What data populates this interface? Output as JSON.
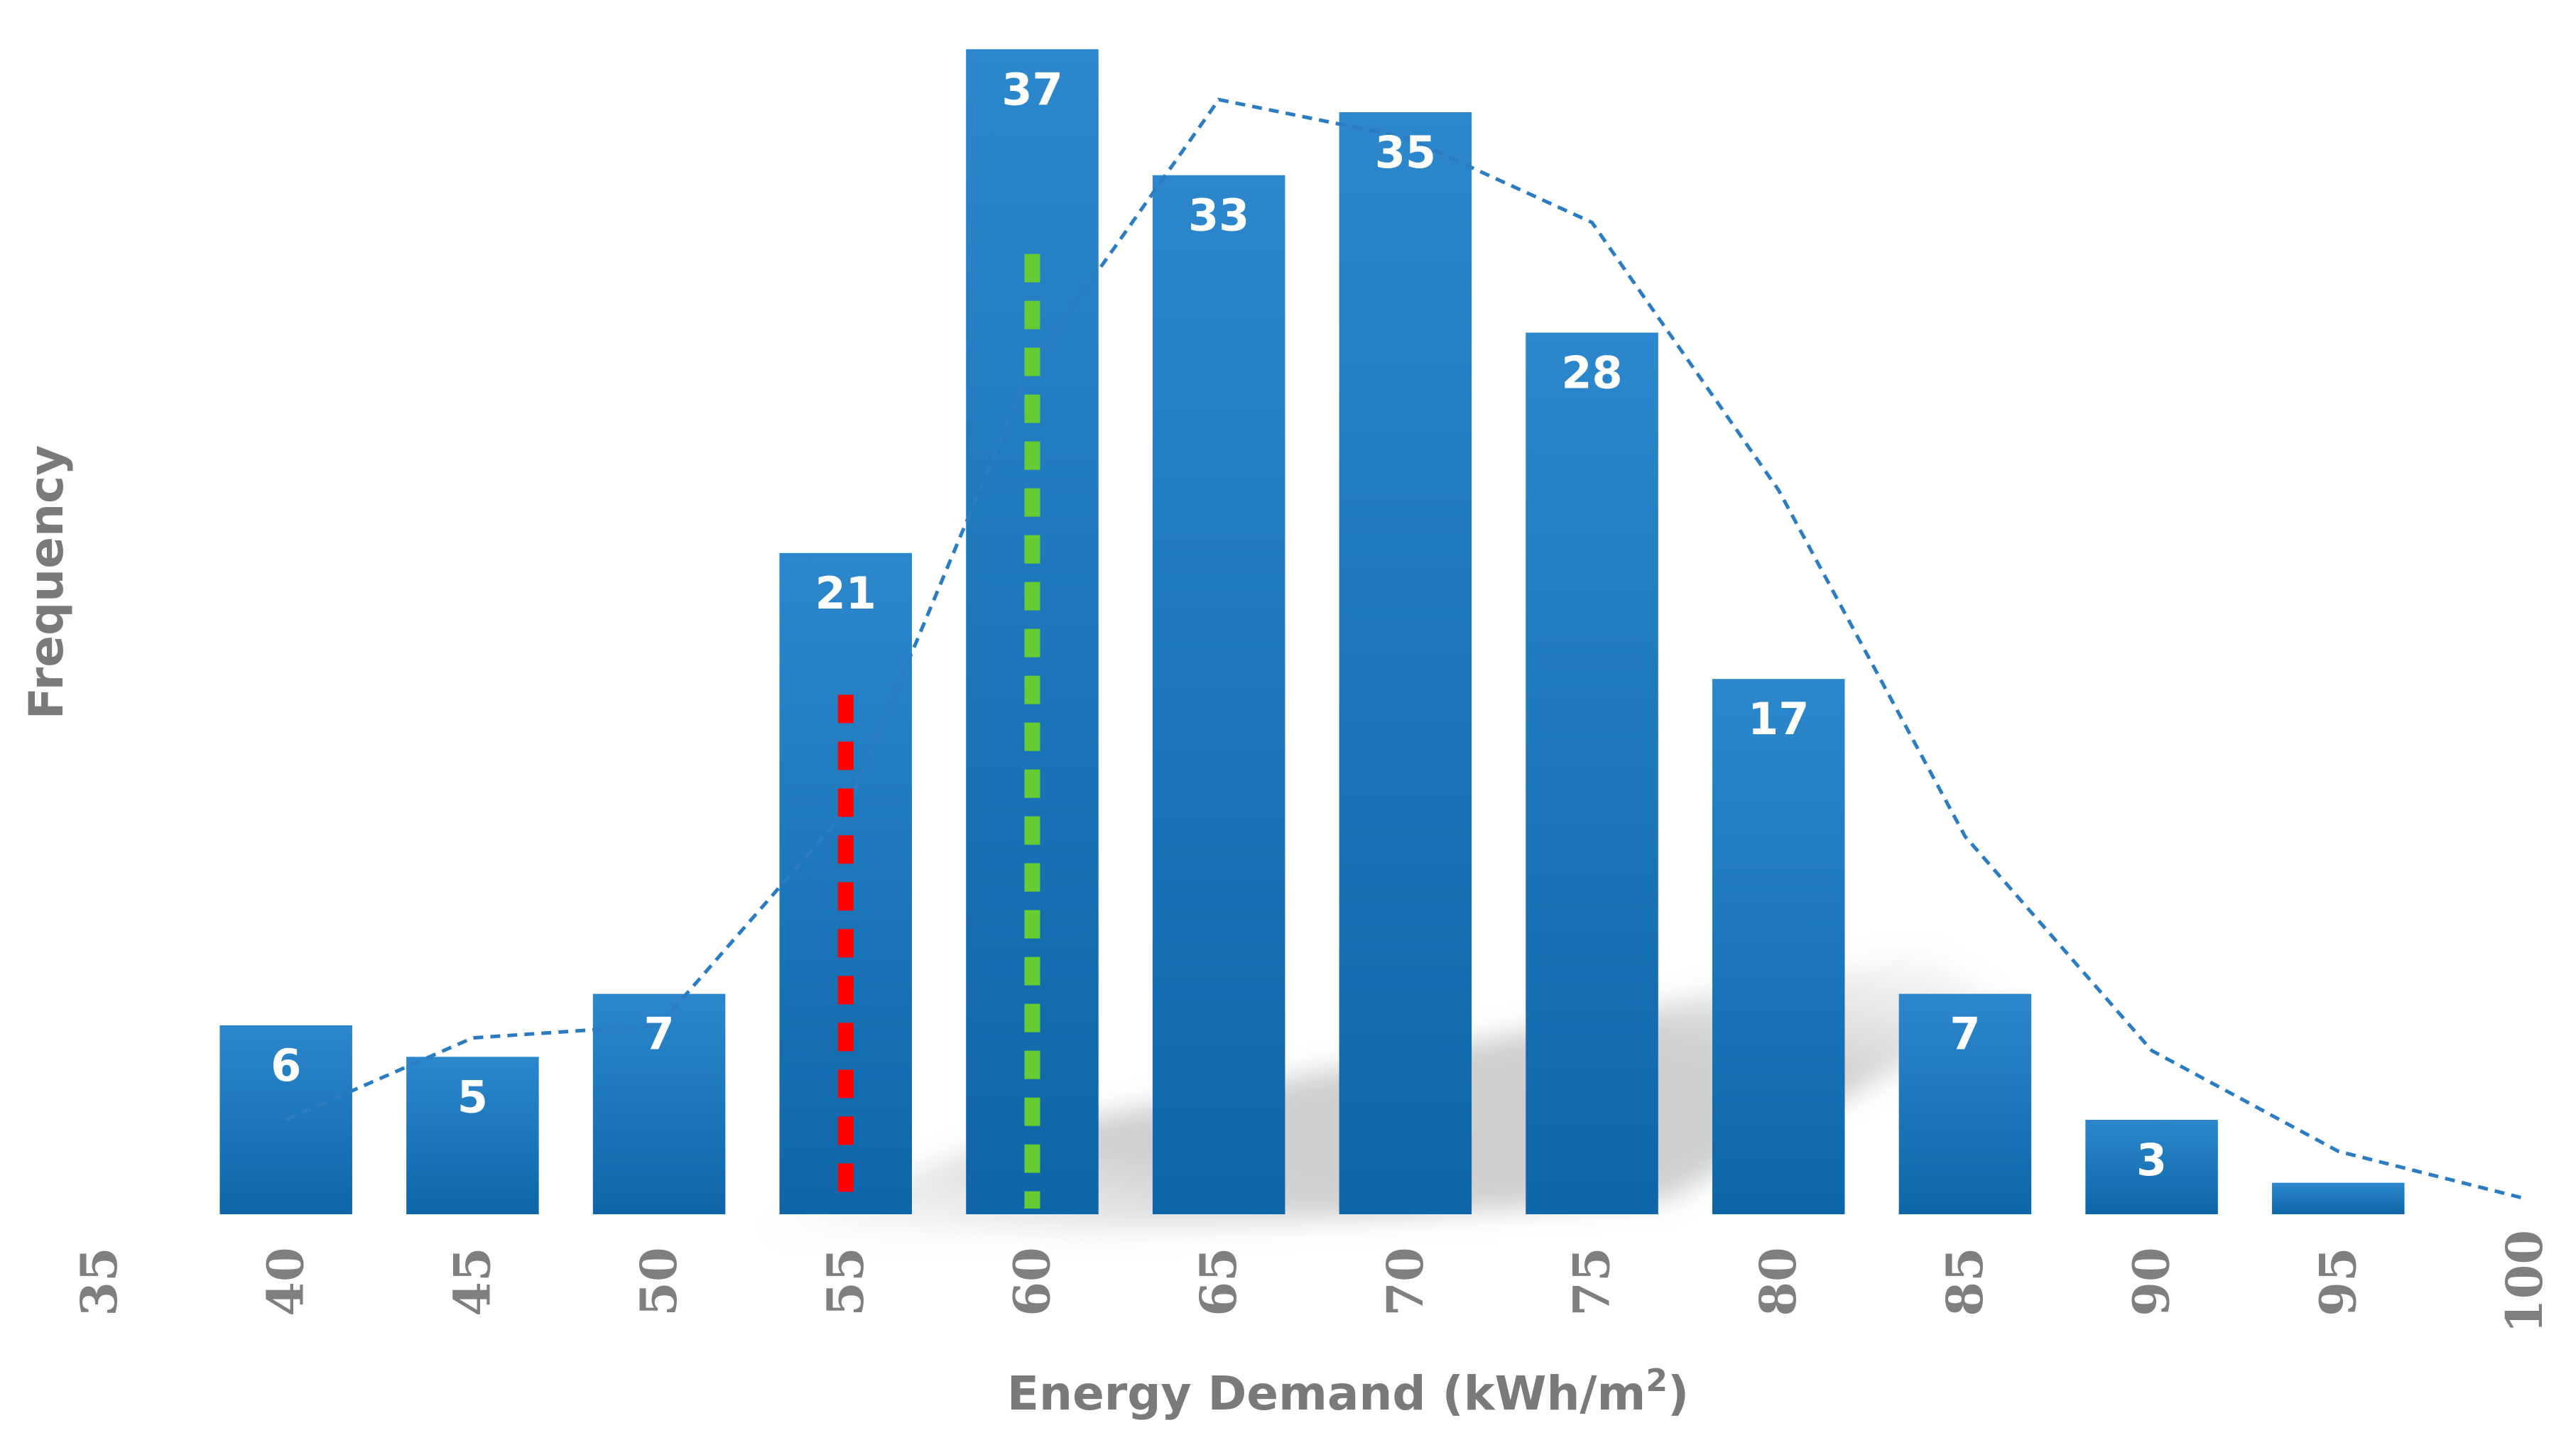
{
  "chart_data": {
    "type": "bar",
    "title": "",
    "xlabel": "Energy Demand (kWh/m2)",
    "xlabel_main": "Energy Demand (kWh/m",
    "xlabel_superscript": "2",
    "xlabel_close": ")",
    "ylabel": "Frequency",
    "x_ticks": [
      "35",
      "40",
      "45",
      "50",
      "55",
      "60",
      "65",
      "70",
      "75",
      "80",
      "85",
      "90",
      "95",
      "100"
    ],
    "x_tick_values": [
      35,
      40,
      45,
      50,
      55,
      60,
      65,
      70,
      75,
      80,
      85,
      90,
      95,
      100
    ],
    "bins": [
      40,
      45,
      50,
      55,
      60,
      65,
      70,
      75,
      80,
      85,
      90,
      95
    ],
    "values": [
      6,
      5,
      7,
      21,
      37,
      33,
      35,
      28,
      17,
      7,
      3,
      1
    ],
    "data_labels": [
      "6",
      "5",
      "7",
      "21",
      "37",
      "33",
      "35",
      "28",
      "17",
      "7",
      "3",
      ""
    ],
    "fit_curve": {
      "style": "dashed",
      "x": [
        40,
        45,
        50,
        55,
        60,
        65,
        70,
        75,
        80,
        85,
        90,
        95,
        100
      ],
      "y": [
        3,
        5.6,
        6,
        12.8,
        27,
        35.4,
        34.2,
        31.5,
        23,
        12,
        5.2,
        2,
        0.5
      ]
    },
    "reference_lines": [
      {
        "name": "red-dashed-reference",
        "x": 55,
        "y_top": 16.5,
        "color": "#ff0000"
      },
      {
        "name": "green-dashed-reference",
        "x": 60,
        "y_top": 30.5,
        "color": "#66cc33"
      }
    ],
    "xlim": [
      35,
      100
    ],
    "ylim": [
      0,
      38
    ],
    "grid": false,
    "legend": "none",
    "colors": {
      "bar_top": "#2c87cc",
      "bar_bottom": "#0e66a8",
      "curve": "#2b7cc0",
      "tick_text": "#7f7f7f",
      "axis_title": "#7a7a7a"
    }
  }
}
